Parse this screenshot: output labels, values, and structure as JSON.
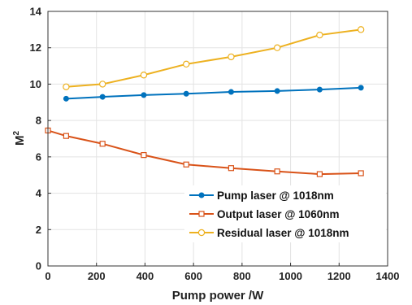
{
  "chart_data": {
    "type": "line",
    "xlabel": "Pump power /W",
    "ylabel": "M",
    "ylabel_sup": "2",
    "xlim": [
      0,
      1400
    ],
    "ylim": [
      0,
      14
    ],
    "xticks": [
      "0",
      "200",
      "400",
      "600",
      "800",
      "1000",
      "1200",
      "1400"
    ],
    "yticks": [
      "0",
      "2",
      "4",
      "6",
      "8",
      "10",
      "12",
      "14"
    ],
    "grid": true,
    "legend_position": "bottom-right",
    "series": [
      {
        "name": "Pump laser @ 1018nm",
        "color": "#0072BD",
        "marker": "dot",
        "x": [
          75,
          225,
          395,
          570,
          755,
          945,
          1120,
          1290
        ],
        "y": [
          9.2,
          9.3,
          9.4,
          9.47,
          9.57,
          9.62,
          9.7,
          9.8
        ]
      },
      {
        "name": "Output laser @ 1060nm",
        "color": "#D95319",
        "marker": "square",
        "x": [
          0,
          75,
          225,
          395,
          570,
          755,
          945,
          1120,
          1290
        ],
        "y": [
          7.45,
          7.15,
          6.72,
          6.1,
          5.58,
          5.38,
          5.2,
          5.05,
          5.1
        ]
      },
      {
        "name": "Residual laser @ 1018nm",
        "color": "#EDB120",
        "marker": "circle",
        "x": [
          75,
          225,
          395,
          570,
          755,
          945,
          1120,
          1290
        ],
        "y": [
          9.85,
          10.0,
          10.5,
          11.1,
          11.5,
          12.0,
          12.7,
          13.0
        ]
      }
    ]
  }
}
